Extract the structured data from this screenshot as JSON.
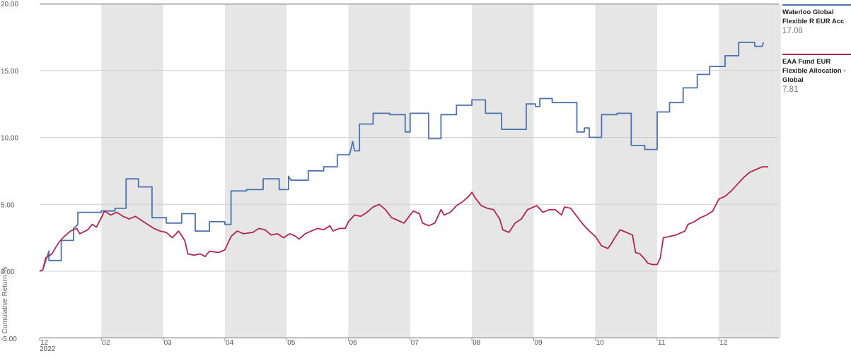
{
  "chart_data": {
    "type": "line",
    "ylabel": "Cumulative Return %",
    "ylim": [
      -5,
      20
    ],
    "yticks": [
      "20.00",
      "15.00",
      "10.00",
      "5.00",
      "0.00",
      "-5.00"
    ],
    "xlim": [
      0,
      12
    ],
    "month_ticks": [
      "12",
      "02",
      "03",
      "04",
      "05",
      "06",
      "07",
      "08",
      "09",
      "10",
      "11",
      "12"
    ],
    "year_label": "2022",
    "shaded_bands": [
      [
        1,
        2
      ],
      [
        3,
        4
      ],
      [
        5,
        6
      ],
      [
        7,
        8
      ],
      [
        9,
        10
      ],
      [
        11,
        12
      ]
    ],
    "grid": true,
    "legend_position": "right",
    "series": [
      {
        "name": "Waterloo Global Flexible R EUR Acc",
        "value_label": "17.08",
        "color": "#4a72b0",
        "points": [
          [
            0,
            0
          ],
          [
            0.05,
            0.1
          ],
          [
            0.15,
            1.5
          ],
          [
            0.15,
            0.8
          ],
          [
            0.35,
            0.8
          ],
          [
            0.35,
            2.3
          ],
          [
            0.55,
            2.3
          ],
          [
            0.55,
            3.2
          ],
          [
            0.62,
            3.5
          ],
          [
            0.62,
            4.4
          ],
          [
            1.0,
            4.4
          ],
          [
            1.0,
            4.5
          ],
          [
            1.22,
            4.5
          ],
          [
            1.22,
            4.7
          ],
          [
            1.4,
            4.7
          ],
          [
            1.4,
            6.9
          ],
          [
            1.6,
            6.9
          ],
          [
            1.6,
            6.3
          ],
          [
            1.82,
            6.3
          ],
          [
            1.82,
            4.0
          ],
          [
            2.05,
            4.0
          ],
          [
            2.05,
            3.6
          ],
          [
            2.3,
            3.6
          ],
          [
            2.3,
            4.3
          ],
          [
            2.52,
            4.3
          ],
          [
            2.52,
            3.0
          ],
          [
            2.75,
            3.0
          ],
          [
            2.75,
            3.7
          ],
          [
            3.0,
            3.7
          ],
          [
            3.0,
            3.5
          ],
          [
            3.1,
            3.5
          ],
          [
            3.1,
            6.0
          ],
          [
            3.35,
            6.0
          ],
          [
            3.35,
            6.1
          ],
          [
            3.62,
            6.1
          ],
          [
            3.62,
            6.9
          ],
          [
            3.88,
            6.9
          ],
          [
            3.88,
            6.1
          ],
          [
            4.03,
            6.1
          ],
          [
            4.03,
            7.1
          ],
          [
            4.07,
            6.8
          ],
          [
            4.35,
            6.8
          ],
          [
            4.35,
            7.5
          ],
          [
            4.6,
            7.5
          ],
          [
            4.6,
            7.8
          ],
          [
            4.82,
            7.8
          ],
          [
            4.82,
            8.7
          ],
          [
            5.02,
            8.7
          ],
          [
            5.07,
            9.7
          ],
          [
            5.1,
            9.0
          ],
          [
            5.18,
            9.0
          ],
          [
            5.18,
            11.0
          ],
          [
            5.4,
            11.0
          ],
          [
            5.4,
            11.8
          ],
          [
            5.67,
            11.8
          ],
          [
            5.67,
            11.7
          ],
          [
            5.92,
            11.7
          ],
          [
            5.92,
            10.4
          ],
          [
            6.0,
            10.4
          ],
          [
            6.0,
            11.8
          ],
          [
            6.3,
            11.8
          ],
          [
            6.3,
            9.9
          ],
          [
            6.5,
            9.9
          ],
          [
            6.5,
            11.7
          ],
          [
            6.75,
            11.7
          ],
          [
            6.75,
            12.4
          ],
          [
            7.0,
            12.4
          ],
          [
            7.0,
            12.8
          ],
          [
            7.22,
            12.8
          ],
          [
            7.22,
            11.8
          ],
          [
            7.48,
            11.8
          ],
          [
            7.48,
            10.6
          ],
          [
            7.88,
            10.6
          ],
          [
            7.88,
            12.5
          ],
          [
            8.03,
            12.5
          ],
          [
            8.03,
            12.3
          ],
          [
            8.1,
            12.3
          ],
          [
            8.1,
            12.9
          ],
          [
            8.3,
            12.9
          ],
          [
            8.3,
            12.6
          ],
          [
            8.7,
            12.6
          ],
          [
            8.7,
            10.4
          ],
          [
            8.82,
            10.4
          ],
          [
            8.82,
            10.7
          ],
          [
            8.9,
            10.7
          ],
          [
            8.9,
            10.0
          ],
          [
            9.1,
            10.0
          ],
          [
            9.1,
            11.7
          ],
          [
            9.35,
            11.7
          ],
          [
            9.35,
            11.8
          ],
          [
            9.58,
            11.8
          ],
          [
            9.58,
            9.4
          ],
          [
            9.8,
            9.4
          ],
          [
            9.8,
            9.1
          ],
          [
            10.0,
            9.1
          ],
          [
            10.0,
            11.9
          ],
          [
            10.2,
            11.9
          ],
          [
            10.2,
            12.6
          ],
          [
            10.42,
            12.6
          ],
          [
            10.42,
            13.7
          ],
          [
            10.65,
            13.7
          ],
          [
            10.65,
            14.7
          ],
          [
            10.85,
            14.7
          ],
          [
            10.85,
            15.3
          ],
          [
            11.1,
            15.3
          ],
          [
            11.1,
            16.1
          ],
          [
            11.32,
            16.1
          ],
          [
            11.32,
            17.1
          ],
          [
            11.58,
            17.1
          ],
          [
            11.58,
            16.8
          ],
          [
            11.7,
            16.8
          ],
          [
            11.72,
            17.1
          ]
        ]
      },
      {
        "name": "EAA Fund EUR Flexible Allocation - Global",
        "value_label": "7.81",
        "color": "#b3244f",
        "points": [
          [
            0,
            0
          ],
          [
            0.05,
            0.1
          ],
          [
            0.1,
            1.0
          ],
          [
            0.2,
            1.3
          ],
          [
            0.25,
            1.7
          ],
          [
            0.32,
            2.2
          ],
          [
            0.4,
            2.6
          ],
          [
            0.5,
            3.0
          ],
          [
            0.6,
            3.2
          ],
          [
            0.65,
            2.8
          ],
          [
            0.78,
            3.1
          ],
          [
            0.85,
            3.5
          ],
          [
            0.92,
            3.3
          ],
          [
            1.0,
            4.0
          ],
          [
            1.05,
            4.5
          ],
          [
            1.15,
            4.2
          ],
          [
            1.25,
            4.4
          ],
          [
            1.35,
            4.1
          ],
          [
            1.45,
            3.9
          ],
          [
            1.55,
            4.1
          ],
          [
            1.65,
            3.8
          ],
          [
            1.75,
            3.5
          ],
          [
            1.85,
            3.2
          ],
          [
            1.95,
            3.0
          ],
          [
            2.05,
            2.9
          ],
          [
            2.15,
            2.5
          ],
          [
            2.25,
            3.0
          ],
          [
            2.35,
            2.3
          ],
          [
            2.4,
            1.3
          ],
          [
            2.5,
            1.2
          ],
          [
            2.6,
            1.3
          ],
          [
            2.68,
            1.1
          ],
          [
            2.75,
            1.5
          ],
          [
            2.9,
            1.4
          ],
          [
            3.0,
            1.6
          ],
          [
            3.1,
            2.6
          ],
          [
            3.2,
            3.0
          ],
          [
            3.3,
            2.8
          ],
          [
            3.45,
            2.9
          ],
          [
            3.55,
            3.2
          ],
          [
            3.65,
            3.1
          ],
          [
            3.75,
            2.7
          ],
          [
            3.85,
            2.8
          ],
          [
            3.95,
            2.5
          ],
          [
            4.05,
            2.8
          ],
          [
            4.15,
            2.6
          ],
          [
            4.2,
            2.4
          ],
          [
            4.3,
            2.8
          ],
          [
            4.4,
            3.0
          ],
          [
            4.5,
            3.2
          ],
          [
            4.6,
            3.1
          ],
          [
            4.7,
            3.4
          ],
          [
            4.75,
            3.0
          ],
          [
            4.85,
            3.2
          ],
          [
            4.95,
            3.2
          ],
          [
            5.0,
            3.7
          ],
          [
            5.1,
            4.2
          ],
          [
            5.2,
            4.1
          ],
          [
            5.3,
            4.4
          ],
          [
            5.4,
            4.8
          ],
          [
            5.5,
            5.0
          ],
          [
            5.6,
            4.6
          ],
          [
            5.7,
            4.0
          ],
          [
            5.8,
            3.8
          ],
          [
            5.9,
            3.6
          ],
          [
            6.0,
            4.2
          ],
          [
            6.05,
            4.5
          ],
          [
            6.15,
            4.3
          ],
          [
            6.2,
            3.6
          ],
          [
            6.3,
            3.4
          ],
          [
            6.4,
            3.6
          ],
          [
            6.5,
            4.6
          ],
          [
            6.55,
            4.2
          ],
          [
            6.65,
            4.4
          ],
          [
            6.75,
            4.9
          ],
          [
            6.85,
            5.2
          ],
          [
            6.95,
            5.6
          ],
          [
            7.0,
            5.9
          ],
          [
            7.05,
            5.5
          ],
          [
            7.15,
            4.9
          ],
          [
            7.25,
            4.7
          ],
          [
            7.35,
            4.6
          ],
          [
            7.45,
            3.9
          ],
          [
            7.5,
            3.1
          ],
          [
            7.6,
            2.9
          ],
          [
            7.7,
            3.6
          ],
          [
            7.8,
            3.9
          ],
          [
            7.9,
            4.6
          ],
          [
            8.0,
            4.8
          ],
          [
            8.05,
            4.9
          ],
          [
            8.15,
            4.4
          ],
          [
            8.25,
            4.6
          ],
          [
            8.35,
            4.6
          ],
          [
            8.45,
            4.2
          ],
          [
            8.5,
            4.8
          ],
          [
            8.6,
            4.7
          ],
          [
            8.7,
            4.1
          ],
          [
            8.8,
            3.5
          ],
          [
            8.9,
            3.0
          ],
          [
            9.0,
            2.6
          ],
          [
            9.1,
            1.9
          ],
          [
            9.2,
            1.7
          ],
          [
            9.25,
            2.0
          ],
          [
            9.3,
            2.4
          ],
          [
            9.4,
            3.1
          ],
          [
            9.5,
            2.9
          ],
          [
            9.6,
            2.7
          ],
          [
            9.65,
            1.4
          ],
          [
            9.72,
            1.3
          ],
          [
            9.78,
            1.0
          ],
          [
            9.85,
            0.6
          ],
          [
            9.92,
            0.5
          ],
          [
            10.0,
            0.5
          ],
          [
            10.05,
            1.0
          ],
          [
            10.1,
            2.5
          ],
          [
            10.2,
            2.6
          ],
          [
            10.3,
            2.7
          ],
          [
            10.45,
            3.0
          ],
          [
            10.5,
            3.5
          ],
          [
            10.6,
            3.7
          ],
          [
            10.7,
            4.0
          ],
          [
            10.8,
            4.2
          ],
          [
            10.9,
            4.5
          ],
          [
            11.0,
            5.4
          ],
          [
            11.1,
            5.6
          ],
          [
            11.2,
            6.0
          ],
          [
            11.3,
            6.5
          ],
          [
            11.4,
            7.0
          ],
          [
            11.5,
            7.4
          ],
          [
            11.6,
            7.6
          ],
          [
            11.7,
            7.8
          ],
          [
            11.8,
            7.8
          ]
        ]
      }
    ]
  }
}
